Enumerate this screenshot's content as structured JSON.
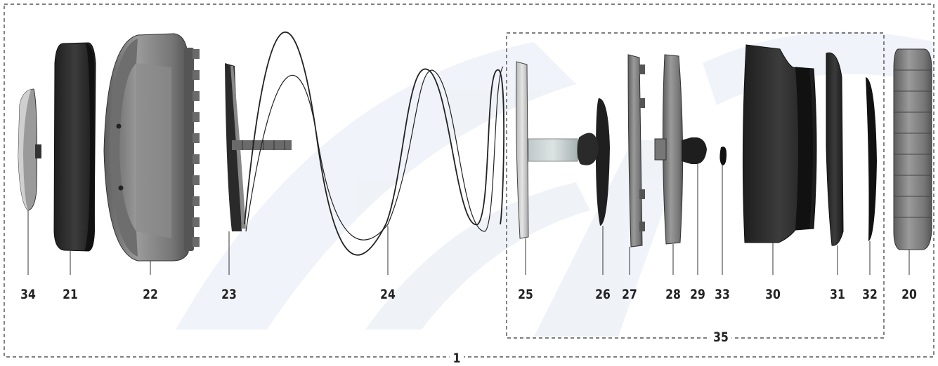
{
  "parts": [
    {
      "id": "34",
      "label": "34",
      "icon": "cap-icon"
    },
    {
      "id": "21",
      "label": "21",
      "icon": "ring-icon"
    },
    {
      "id": "22",
      "label": "22",
      "icon": "housing-icon"
    },
    {
      "id": "23",
      "label": "23",
      "icon": "plate-icon"
    },
    {
      "id": "24",
      "label": "24",
      "icon": "spring-icon"
    },
    {
      "id": "25",
      "label": "25",
      "icon": "disc-icon"
    },
    {
      "id": "26",
      "label": "26",
      "icon": "diaphragm-icon"
    },
    {
      "id": "27",
      "label": "27",
      "icon": "plate-icon"
    },
    {
      "id": "28",
      "label": "28",
      "icon": "valve-seat-icon"
    },
    {
      "id": "29",
      "label": "29",
      "icon": "nut-icon"
    },
    {
      "id": "33",
      "label": "33",
      "icon": "o-ring-icon"
    },
    {
      "id": "30",
      "label": "30",
      "icon": "body-icon"
    },
    {
      "id": "31",
      "label": "31",
      "icon": "seal-icon"
    },
    {
      "id": "32",
      "label": "32",
      "icon": "gasket-icon"
    },
    {
      "id": "20",
      "label": "20",
      "icon": "nut-ring-icon"
    }
  ],
  "groups": {
    "outer": {
      "label": "1"
    },
    "inner": {
      "label": "35"
    }
  },
  "colors": {
    "part_dark": "#2b2b2b",
    "part_gray": "#8a8a8a",
    "part_light": "#cfcfcf",
    "frame": "#333333",
    "watermark": "#eef2f8"
  }
}
